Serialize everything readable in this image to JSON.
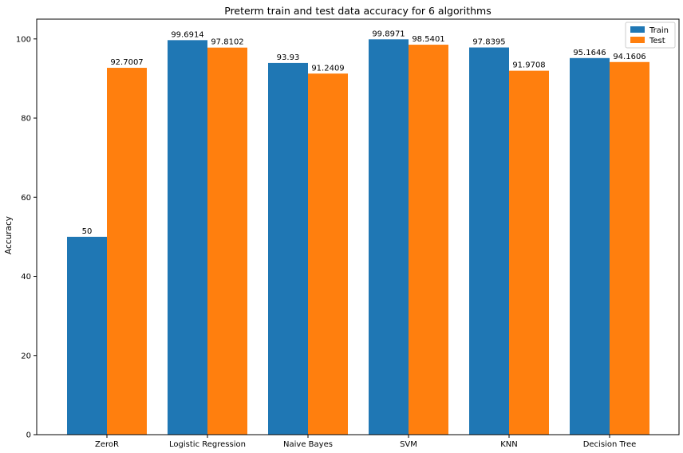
{
  "chart_data": {
    "type": "bar",
    "title": "Preterm train and test data accuracy for 6 algorithms",
    "xlabel": "",
    "ylabel": "Accuracy",
    "categories": [
      "ZeroR",
      "Logistic Regression",
      "Naive Bayes",
      "SVM",
      "KNN",
      "Decision Tree"
    ],
    "series": [
      {
        "name": "Train",
        "color": "#1f77b4",
        "values": [
          50,
          99.6914,
          93.93,
          99.8971,
          97.8395,
          95.1646
        ],
        "labels": [
          "50",
          "99.6914",
          "93.93",
          "99.8971",
          "97.8395",
          "95.1646"
        ]
      },
      {
        "name": "Test",
        "color": "#ff7f0e",
        "values": [
          92.7007,
          97.8102,
          91.2409,
          98.5401,
          91.9708,
          94.1606
        ],
        "labels": [
          "92.7007",
          "97.8102",
          "91.2409",
          "98.5401",
          "91.9708",
          "94.1606"
        ]
      }
    ],
    "yticks": [
      "0",
      "20",
      "40",
      "60",
      "80",
      "100"
    ],
    "ylim": [
      0,
      105
    ],
    "legend": "top-right",
    "grid": false
  }
}
